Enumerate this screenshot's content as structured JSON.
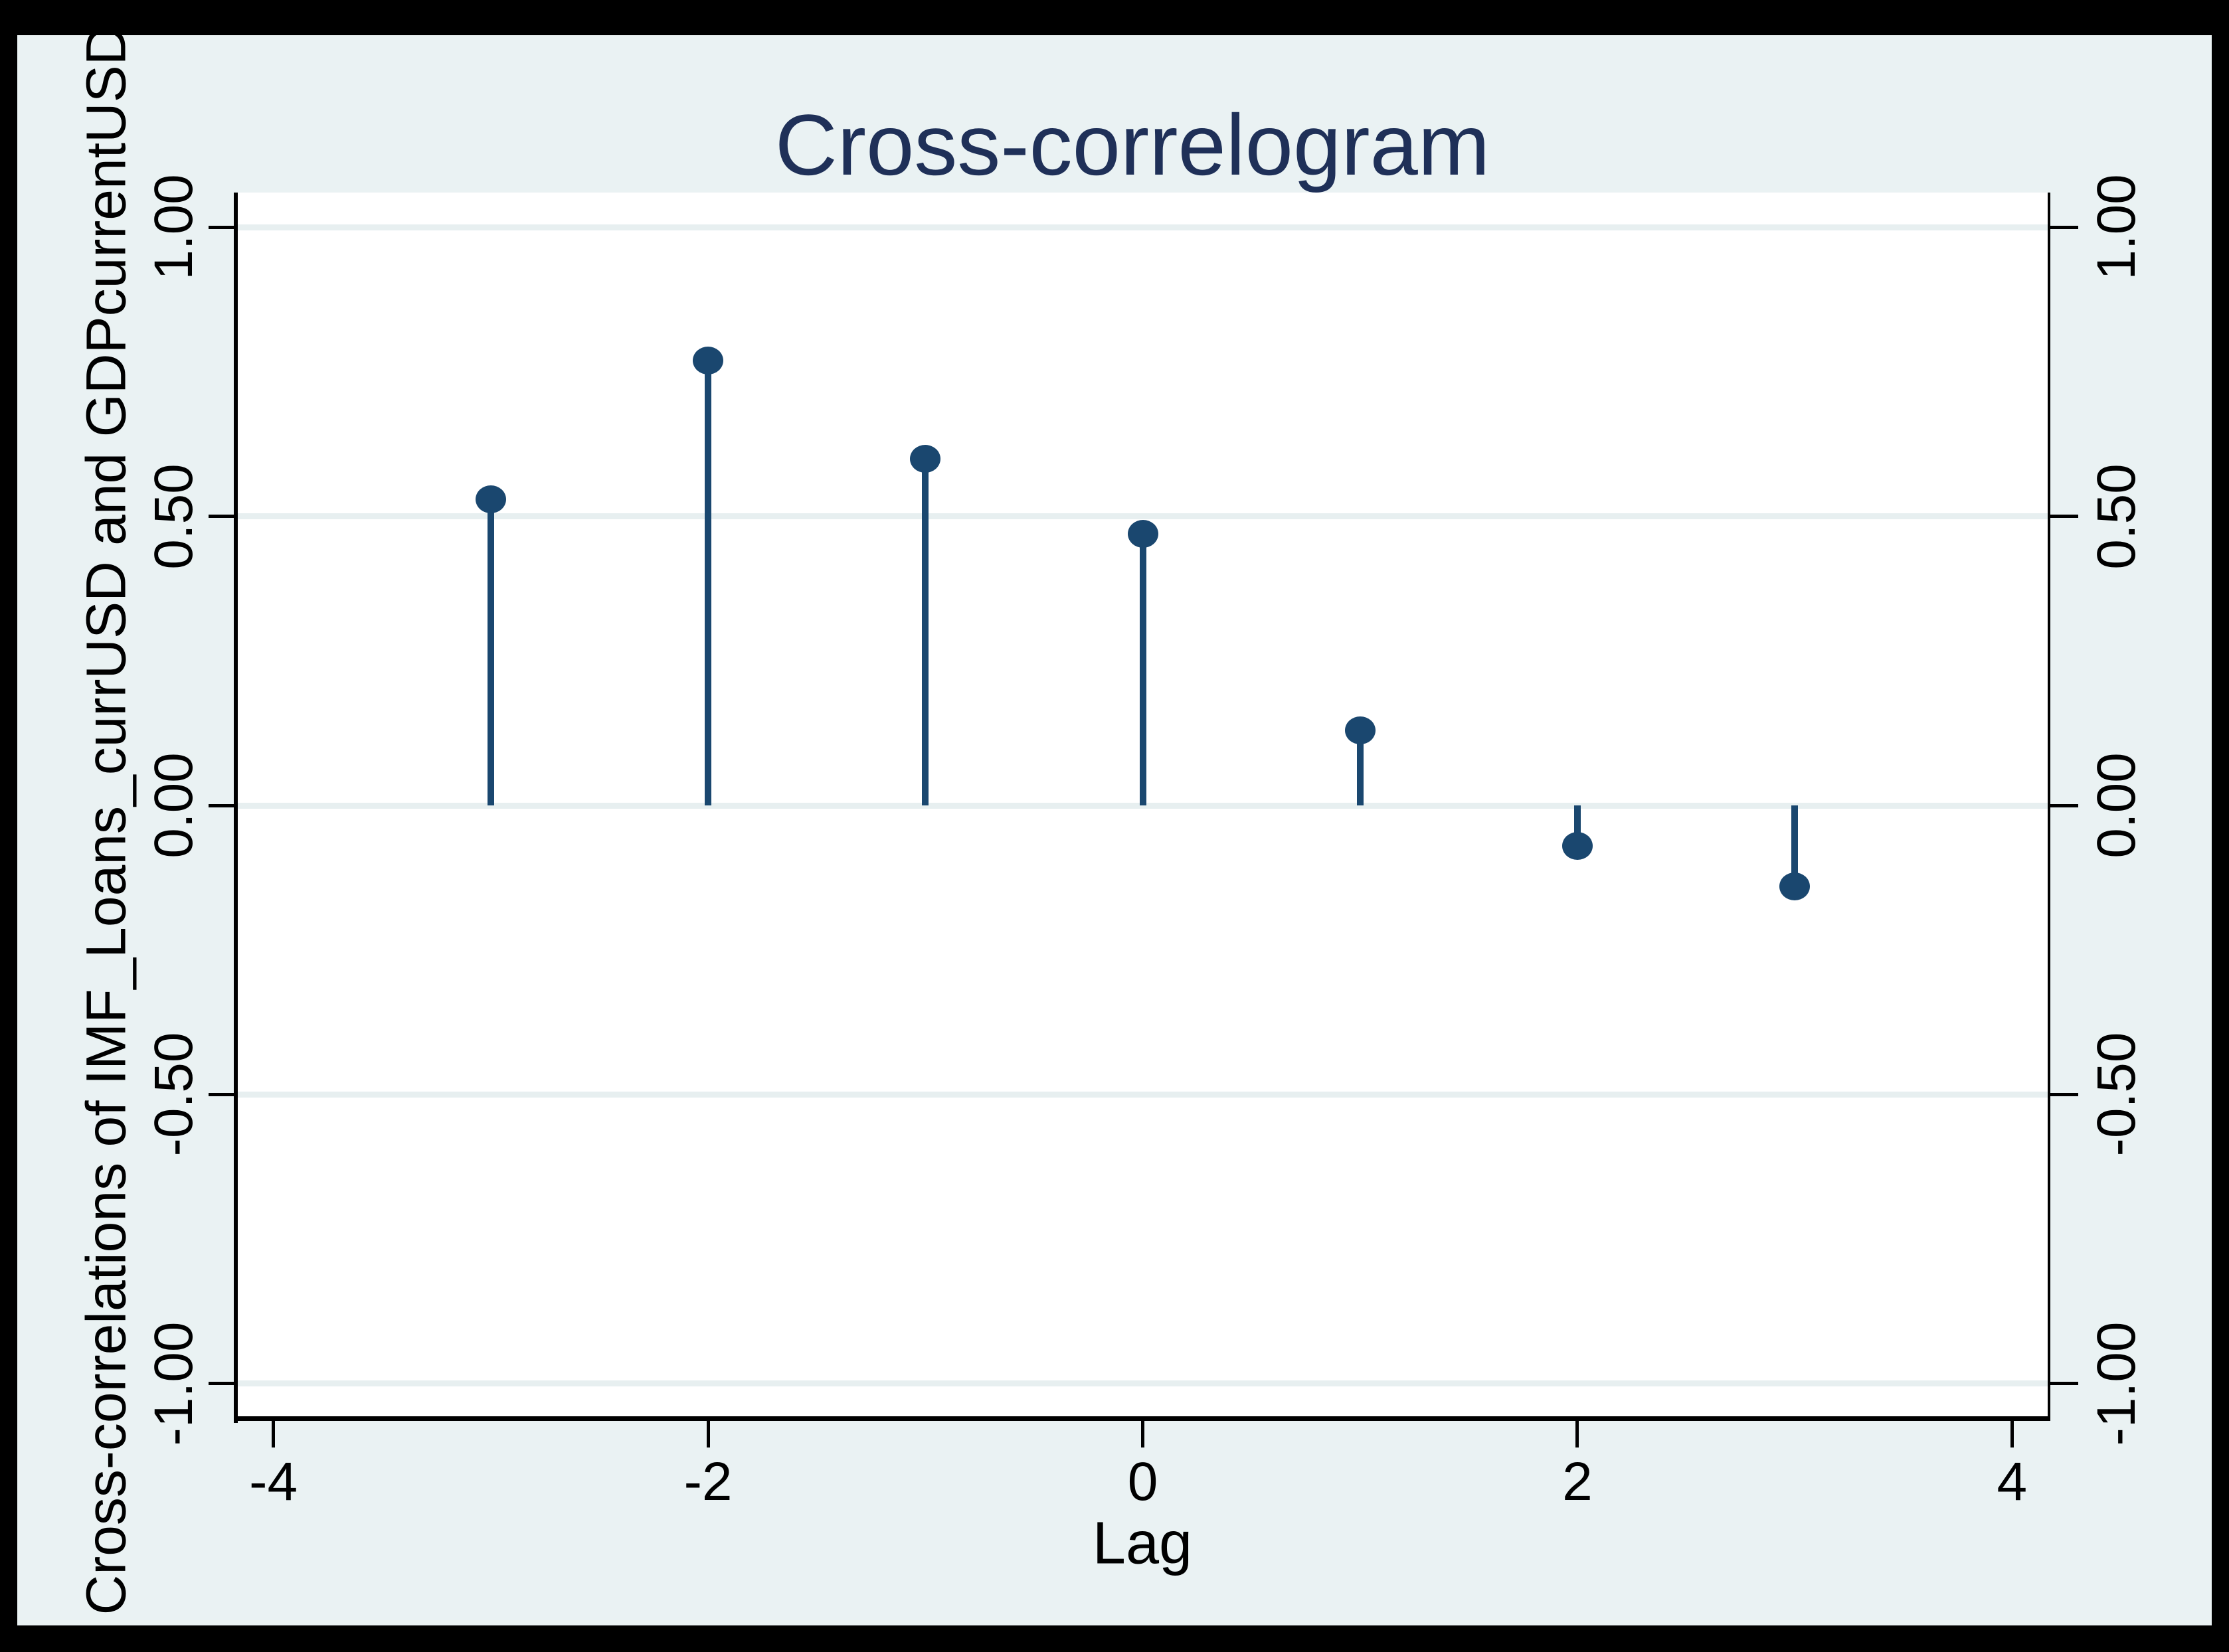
{
  "colors": {
    "frame": "#000000",
    "background": "#EAF2F3",
    "plot_background": "#FFFFFF",
    "gridline": "#E7EFF0",
    "axis": "#000000",
    "series": "#1A476F",
    "title": "#1F3058"
  },
  "chart_data": {
    "type": "stem",
    "title": "Cross-correlogram",
    "xlabel": "Lag",
    "ylabel": "Cross-correlations of IMF_Loans_currUSD and GDPcurrentUSD",
    "x": [
      -3,
      -2,
      -1,
      0,
      1,
      2,
      3
    ],
    "values": [
      0.53,
      0.77,
      0.6,
      0.47,
      0.13,
      -0.07,
      -0.14
    ],
    "xticks": [
      -4,
      -2,
      0,
      2,
      4
    ],
    "xtick_labels": [
      "-4",
      "-2",
      "0",
      "2",
      "4"
    ],
    "yticks": [
      1.0,
      0.5,
      0.0,
      -0.5,
      -1.0
    ],
    "ytick_labels_left": [
      "1.00",
      "0.50",
      "0.00",
      "-0.50",
      "-1.00"
    ],
    "ytick_labels_right": [
      "1.00",
      "0.50",
      "0.00",
      "-0.50",
      "-1.00"
    ],
    "xlim": [
      -4.17,
      4.17
    ],
    "ylim": [
      -1.06,
      1.06
    ],
    "grid": true,
    "legend": "none"
  }
}
